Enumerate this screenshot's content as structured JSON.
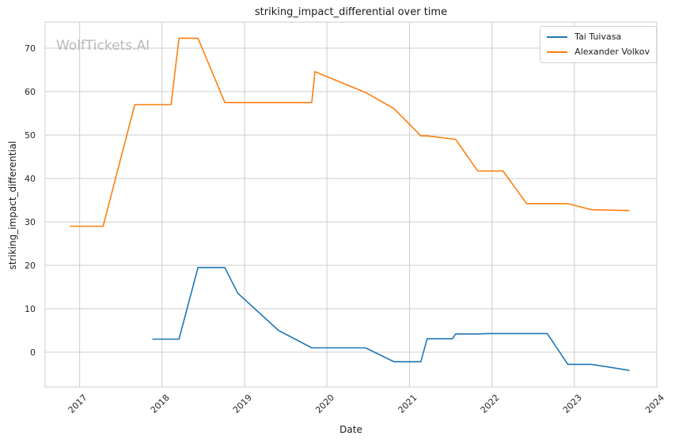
{
  "chart_data": {
    "type": "line",
    "title": "striking_impact_differential over time",
    "xlabel": "Date",
    "ylabel": "striking_impact_differential",
    "watermark": "WolfTickets.AI",
    "xlim": [
      "2016-08-01",
      "2024-01-01"
    ],
    "ylim": [
      -8,
      76
    ],
    "x_ticks": [
      "2017",
      "2018",
      "2019",
      "2020",
      "2021",
      "2022",
      "2023",
      "2024"
    ],
    "y_ticks": [
      0,
      10,
      20,
      30,
      40,
      50,
      60,
      70
    ],
    "grid": true,
    "legend_position": "top-right",
    "series": [
      {
        "name": "Tai Tuivasa",
        "color": "#1f77b4",
        "points": [
          [
            "2017-11-19",
            3.0
          ],
          [
            "2018-03-17",
            3.0
          ],
          [
            "2018-06-09",
            19.5
          ],
          [
            "2018-10-06",
            19.5
          ],
          [
            "2018-12-02",
            13.6
          ],
          [
            "2019-06-01",
            5.0
          ],
          [
            "2019-10-26",
            1.0
          ],
          [
            "2020-06-20",
            1.0
          ],
          [
            "2020-10-24",
            -2.2
          ],
          [
            "2021-02-20",
            -2.2
          ],
          [
            "2021-03-20",
            3.1
          ],
          [
            "2021-07-10",
            3.1
          ],
          [
            "2021-07-24",
            4.2
          ],
          [
            "2021-11-06",
            4.2
          ],
          [
            "2021-12-11",
            4.3
          ],
          [
            "2022-09-03",
            4.3
          ],
          [
            "2022-12-03",
            -2.8
          ],
          [
            "2023-03-18",
            -2.8
          ],
          [
            "2023-09-02",
            -4.2
          ]
        ]
      },
      {
        "name": "Alexander Volkov",
        "color": "#ff7f0e",
        "points": [
          [
            "2016-11-19",
            29.0
          ],
          [
            "2017-04-15",
            29.0
          ],
          [
            "2017-09-02",
            57.0
          ],
          [
            "2018-02-10",
            57.0
          ],
          [
            "2018-03-17",
            72.3
          ],
          [
            "2018-06-09",
            72.3
          ],
          [
            "2018-10-06",
            57.5
          ],
          [
            "2019-10-26",
            57.5
          ],
          [
            "2019-11-09",
            64.6
          ],
          [
            "2020-06-20",
            59.8
          ],
          [
            "2020-10-24",
            56.1
          ],
          [
            "2021-02-20",
            49.8
          ],
          [
            "2021-03-20",
            49.8
          ],
          [
            "2021-07-24",
            49.0
          ],
          [
            "2021-10-30",
            41.7
          ],
          [
            "2022-02-19",
            41.7
          ],
          [
            "2022-06-04",
            34.2
          ],
          [
            "2022-12-03",
            34.2
          ],
          [
            "2023-03-18",
            32.8
          ],
          [
            "2023-09-02",
            32.6
          ]
        ]
      }
    ]
  }
}
